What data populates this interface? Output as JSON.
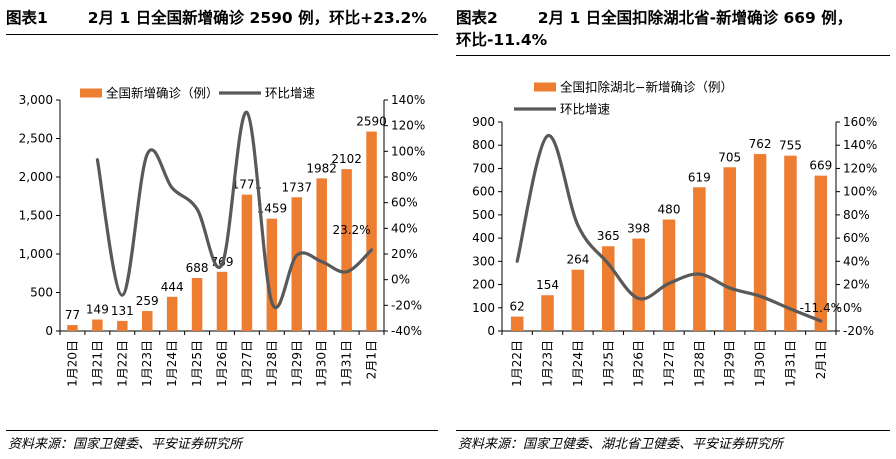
{
  "colors": {
    "bar": "#ED7D31",
    "line": "#595959",
    "axis": "#000000",
    "gridless": true
  },
  "chart_data": [
    {
      "type": "bar+line",
      "figure_label": "图表1",
      "title": "2月 1 日全国新增确诊 2590 例，环比+23.2%",
      "categories": [
        "1月20日",
        "1月21日",
        "1月22日",
        "1月23日",
        "1月24日",
        "1月25日",
        "1月26日",
        "1月27日",
        "1月28日",
        "1月29日",
        "1月30日",
        "1月31日",
        "2月1日"
      ],
      "series": [
        {
          "name": "全国新增确诊（例）",
          "type": "bar",
          "axis": "left",
          "color": "#ED7D31",
          "values": [
            77,
            149,
            131,
            259,
            444,
            688,
            769,
            1771,
            1459,
            1737,
            1982,
            2102,
            2590
          ],
          "labels": [
            "77",
            "149",
            "131",
            "259",
            "444",
            "688",
            "769",
            "1771",
            "1459",
            "1737",
            "1982",
            "2102",
            "2590"
          ]
        },
        {
          "name": "环比增速",
          "type": "line",
          "axis": "right",
          "color": "#595959",
          "values": [
            null,
            93.5,
            -12.1,
            97.7,
            71.4,
            55.0,
            11.8,
            130.3,
            -17.6,
            19.1,
            14.1,
            6.1,
            23.2
          ],
          "end_label": "23.2%"
        }
      ],
      "y_left": {
        "lim": [
          0,
          3000
        ],
        "ticks": [
          "0",
          "500",
          "1,000",
          "1,500",
          "2,000",
          "2,500",
          "3,000"
        ],
        "tick_values": [
          0,
          500,
          1000,
          1500,
          2000,
          2500,
          3000
        ]
      },
      "y_right": {
        "lim": [
          -40,
          140
        ],
        "ticks": [
          "-40%",
          "-20%",
          "0%",
          "20%",
          "40%",
          "60%",
          "80%",
          "100%",
          "120%",
          "140%"
        ],
        "tick_values": [
          -40,
          -20,
          0,
          20,
          40,
          60,
          80,
          100,
          120,
          140
        ]
      },
      "legend": {
        "placement": "top",
        "layout": "single-row"
      },
      "grid": false,
      "source": "资料来源：国家卫健委、平安证券研究所"
    },
    {
      "type": "bar+line",
      "figure_label": "图表2",
      "title": "2月 1 日全国扣除湖北省-新增确诊 669 例，",
      "title_line2": "环比-11.4%",
      "categories": [
        "1月22日",
        "1月23日",
        "1月24日",
        "1月25日",
        "1月26日",
        "1月27日",
        "1月28日",
        "1月29日",
        "1月30日",
        "1月31日",
        "2月1日"
      ],
      "series": [
        {
          "name": "全国扣除湖北−新增确诊（例）",
          "type": "bar",
          "axis": "left",
          "color": "#ED7D31",
          "values": [
            62,
            154,
            264,
            365,
            398,
            480,
            619,
            705,
            762,
            755,
            669
          ],
          "labels": [
            "62",
            "154",
            "264",
            "365",
            "398",
            "480",
            "619",
            "705",
            "762",
            "755",
            "669"
          ]
        },
        {
          "name": "环比增速",
          "type": "line",
          "axis": "right",
          "color": "#595959",
          "values": [
            40,
            148,
            71,
            38,
            8,
            21,
            29,
            17,
            10,
            -1,
            -11.4
          ],
          "end_label": "-11.4%"
        }
      ],
      "y_left": {
        "lim": [
          0,
          900
        ],
        "ticks": [
          "0",
          "100",
          "200",
          "300",
          "400",
          "500",
          "600",
          "700",
          "800",
          "900"
        ],
        "tick_values": [
          0,
          100,
          200,
          300,
          400,
          500,
          600,
          700,
          800,
          900
        ]
      },
      "y_right": {
        "lim": [
          -20,
          160
        ],
        "ticks": [
          "-20%",
          "0%",
          "20%",
          "40%",
          "60%",
          "80%",
          "100%",
          "120%",
          "140%",
          "160%"
        ],
        "tick_values": [
          -20,
          0,
          20,
          40,
          60,
          80,
          100,
          120,
          140,
          160
        ]
      },
      "legend": {
        "placement": "top-left",
        "layout": "two-rows"
      },
      "grid": false,
      "source": "资料来源：国家卫健委、湖北省卫健委、平安证券研究所"
    }
  ]
}
